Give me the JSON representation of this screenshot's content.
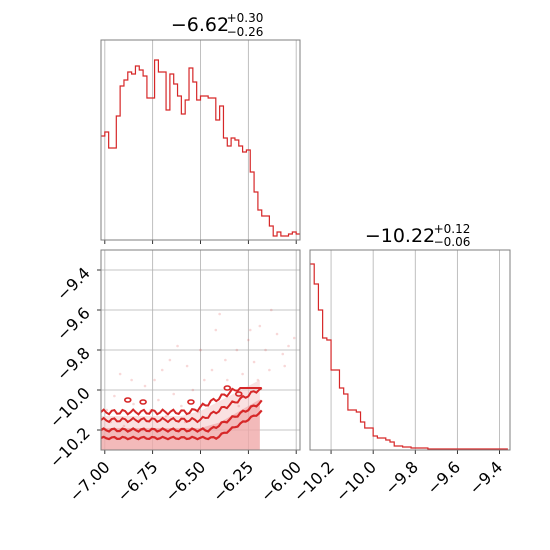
{
  "chart_data": [
    {
      "type": "histogram",
      "panel": "param-1-marginal",
      "title": "−6.62",
      "title_sup": "+0.30",
      "title_sub": "−0.26",
      "xlim": [
        -7.02,
        -5.98
      ],
      "bins_x": [
        -7.02,
        -7.0,
        -6.98,
        -6.96,
        -6.94,
        -6.92,
        -6.9,
        -6.88,
        -6.86,
        -6.84,
        -6.82,
        -6.8,
        -6.78,
        -6.76,
        -6.74,
        -6.72,
        -6.7,
        -6.68,
        -6.66,
        -6.64,
        -6.62,
        -6.6,
        -6.58,
        -6.56,
        -6.54,
        -6.52,
        -6.5,
        -6.48,
        -6.46,
        -6.44,
        -6.42,
        -6.4,
        -6.38,
        -6.36,
        -6.34,
        -6.32,
        -6.3,
        -6.28,
        -6.26,
        -6.24,
        -6.22,
        -6.2,
        -6.18,
        -6.16,
        -6.14,
        -6.12,
        -6.1,
        -6.08,
        -6.06,
        -6.04,
        -6.02,
        -6.0,
        -5.98
      ],
      "values": [
        0.52,
        0.54,
        0.46,
        0.46,
        0.62,
        0.77,
        0.8,
        0.84,
        0.83,
        0.87,
        0.85,
        0.82,
        0.71,
        0.71,
        0.9,
        0.84,
        0.84,
        0.65,
        0.83,
        0.78,
        0.72,
        0.63,
        0.7,
        0.86,
        0.79,
        0.7,
        0.72,
        0.72,
        0.71,
        0.71,
        0.6,
        0.67,
        0.51,
        0.47,
        0.51,
        0.5,
        0.47,
        0.44,
        0.45,
        0.34,
        0.24,
        0.15,
        0.12,
        0.12,
        0.07,
        0.02,
        0.04,
        0.02,
        0.02,
        0.03,
        0.04,
        0.03
      ]
    },
    {
      "type": "histogram",
      "panel": "param-2-marginal",
      "title": "−10.22",
      "title_sup": "+0.12",
      "title_sub": "−0.06",
      "xlim": [
        -10.3,
        -9.35
      ],
      "bins_x": [
        -10.3,
        -10.28,
        -10.26,
        -10.24,
        -10.22,
        -10.2,
        -10.18,
        -10.16,
        -10.14,
        -10.12,
        -10.1,
        -10.08,
        -10.06,
        -10.04,
        -10.02,
        -10.0,
        -9.98,
        -9.96,
        -9.94,
        -9.92,
        -9.9,
        -9.88,
        -9.86,
        -9.84,
        -9.82,
        -9.8,
        -9.78,
        -9.76,
        -9.74,
        -9.72,
        -9.7,
        -9.68,
        -9.66,
        -9.64,
        -9.62,
        -9.6,
        -9.58,
        -9.56,
        -9.54,
        -9.52,
        -9.5,
        -9.48,
        -9.46,
        -9.44,
        -9.42,
        -9.4,
        -9.38,
        -9.36
      ],
      "values": [
        0.93,
        0.83,
        0.7,
        0.56,
        0.55,
        0.4,
        0.4,
        0.31,
        0.28,
        0.2,
        0.2,
        0.19,
        0.14,
        0.11,
        0.11,
        0.07,
        0.06,
        0.06,
        0.05,
        0.04,
        0.02,
        0.02,
        0.015,
        0.015,
        0.01,
        0.01,
        0.01,
        0.01,
        0.005,
        0.005,
        0.005,
        0.005,
        0.005,
        0.005,
        0.005,
        0.005,
        0.005,
        0.005,
        0.005,
        0.005,
        0.005,
        0.005,
        0.005,
        0.005,
        0.005,
        0.005,
        0.005
      ]
    },
    {
      "type": "contour-scatter",
      "panel": "joint-2d",
      "xlim": [
        -7.02,
        -5.98
      ],
      "ylim": [
        -10.3,
        -9.3
      ],
      "points": [
        [
          -6.95,
          -10.03
        ],
        [
          -6.92,
          -9.92
        ],
        [
          -6.88,
          -10.12
        ],
        [
          -6.85,
          -10.07
        ],
        [
          -6.82,
          -10.15
        ],
        [
          -6.79,
          -9.98
        ],
        [
          -6.76,
          -10.1
        ],
        [
          -6.72,
          -10.05
        ],
        [
          -6.7,
          -9.9
        ],
        [
          -6.68,
          -10.13
        ],
        [
          -6.64,
          -10.02
        ],
        [
          -6.6,
          -10.08
        ],
        [
          -6.57,
          -9.88
        ],
        [
          -6.54,
          -10.0
        ],
        [
          -6.51,
          -10.11
        ],
        [
          -6.48,
          -9.95
        ],
        [
          -6.45,
          -10.06
        ],
        [
          -6.42,
          -9.7
        ],
        [
          -6.4,
          -10.04
        ],
        [
          -6.37,
          -9.85
        ],
        [
          -6.34,
          -10.0
        ],
        [
          -6.31,
          -9.8
        ],
        [
          -6.28,
          -9.92
        ],
        [
          -6.25,
          -9.75
        ],
        [
          -6.22,
          -9.86
        ],
        [
          -6.19,
          -9.68
        ],
        [
          -6.16,
          -9.8
        ],
        [
          -6.13,
          -9.6
        ],
        [
          -6.1,
          -9.72
        ],
        [
          -6.07,
          -9.82
        ],
        [
          -6.04,
          -9.78
        ],
        [
          -6.01,
          -9.74
        ],
        [
          -6.99,
          -10.1
        ],
        [
          -6.9,
          -10.18
        ],
        [
          -6.8,
          -10.2
        ],
        [
          -6.74,
          -9.95
        ],
        [
          -6.66,
          -9.85
        ],
        [
          -6.58,
          -10.16
        ],
        [
          -6.5,
          -9.8
        ],
        [
          -6.44,
          -9.9
        ],
        [
          -6.36,
          -9.95
        ],
        [
          -6.3,
          -10.08
        ],
        [
          -6.2,
          -9.95
        ],
        [
          -6.14,
          -9.9
        ],
        [
          -6.4,
          -9.62
        ],
        [
          -6.62,
          -9.78
        ],
        [
          -6.86,
          -9.95
        ],
        [
          -6.97,
          -10.16
        ],
        [
          -6.06,
          -9.88
        ],
        [
          -6.24,
          -9.7
        ]
      ]
    }
  ],
  "axes": {
    "joint_x_ticks": [
      {
        "value": -7.0,
        "label": "−7.00"
      },
      {
        "value": -6.75,
        "label": "−6.75"
      },
      {
        "value": -6.5,
        "label": "−6.50"
      },
      {
        "value": -6.25,
        "label": "−6.25"
      },
      {
        "value": -6.0,
        "label": "−6.00"
      }
    ],
    "joint_y_ticks": [
      {
        "value": -9.4,
        "label": "−9.4"
      },
      {
        "value": -9.6,
        "label": "−9.6"
      },
      {
        "value": -9.8,
        "label": "−9.8"
      },
      {
        "value": -10.0,
        "label": "−10.0"
      },
      {
        "value": -10.2,
        "label": "−10.2"
      }
    ],
    "marg2_x_ticks": [
      {
        "value": -10.2,
        "label": "−10.2"
      },
      {
        "value": -10.0,
        "label": "−10.0"
      },
      {
        "value": -9.8,
        "label": "−9.8"
      },
      {
        "value": -9.6,
        "label": "−9.6"
      },
      {
        "value": -9.4,
        "label": "−9.4"
      }
    ]
  },
  "colors": {
    "series": "#d62728",
    "fill_light": "#f6c9c9",
    "fill_mid": "#ec9a9a",
    "frame": "#7f7f7f",
    "grid": "#b0b0b0"
  }
}
